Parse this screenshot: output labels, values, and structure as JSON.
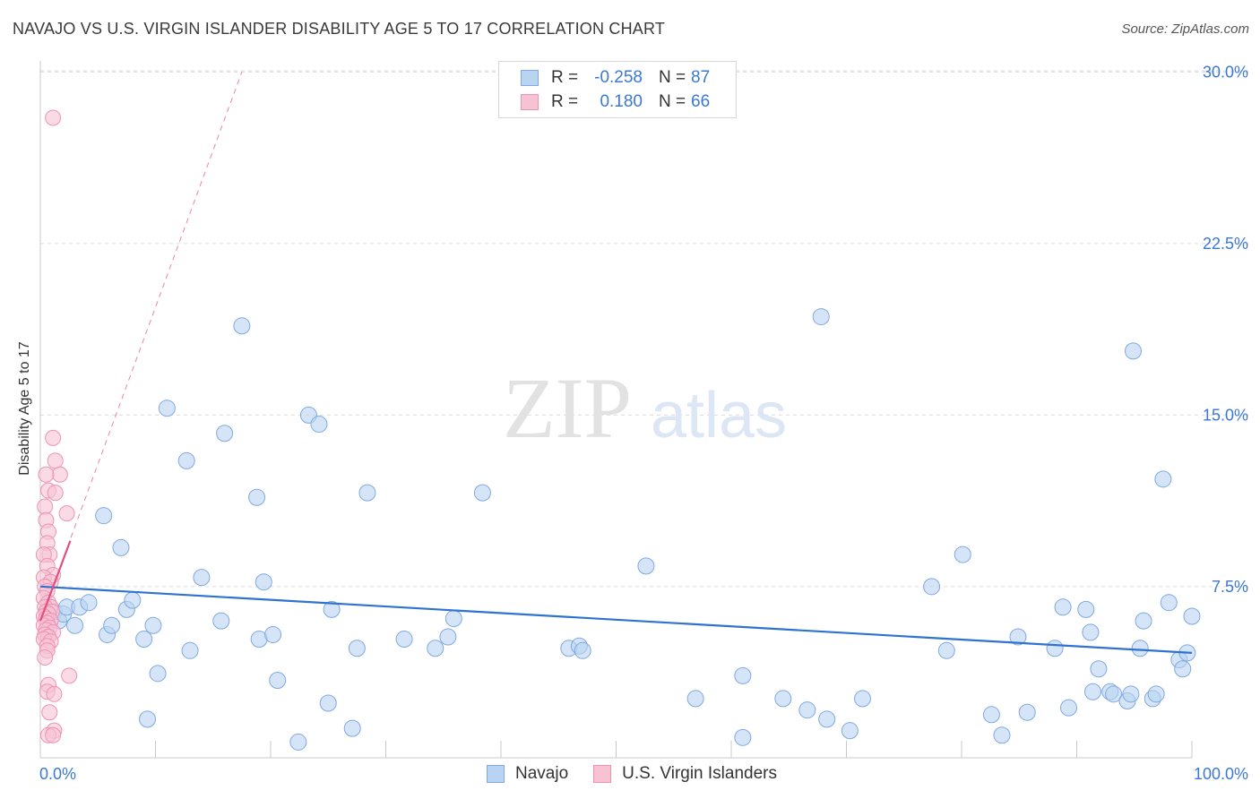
{
  "header": {
    "title": "NAVAJO VS U.S. VIRGIN ISLANDER DISABILITY AGE 5 TO 17 CORRELATION CHART",
    "source": "Source: ZipAtlas.com"
  },
  "watermark": {
    "zip": "ZIP",
    "atlas": "atlas"
  },
  "stats": {
    "navajo": {
      "r_label": "R =",
      "r_value": "-0.258",
      "n_label": "N =",
      "n_value": "87"
    },
    "virgin": {
      "r_label": "R =",
      "r_value": "0.180",
      "n_label": "N =",
      "n_value": "66"
    }
  },
  "legend": {
    "navajo": "Navajo",
    "virgin": "U.S. Virgin Islanders"
  },
  "colors": {
    "navajo_fill": "#b9d3f2",
    "navajo_stroke": "#7fa9e0",
    "navajo_line": "#2f73d0",
    "virgin_fill": "#f7c3d3",
    "virgin_stroke": "#ee93b1",
    "virgin_line": "#e2507f",
    "tick_label": "#3b78d4",
    "grid": "#dcdcdc"
  },
  "chart_data": {
    "type": "scatter",
    "title": "NAVAJO VS U.S. VIRGIN ISLANDER DISABILITY AGE 5 TO 17 CORRELATION CHART",
    "xlabel": "",
    "ylabel": "Disability Age 5 to 17",
    "xlim": [
      0,
      100
    ],
    "ylim": [
      0,
      31
    ],
    "x_tick_labels": [
      "0.0%",
      "100.0%"
    ],
    "y_ticks": [
      7.5,
      15.0,
      22.5,
      30.0
    ],
    "y_tick_labels": [
      "7.5%",
      "15.0%",
      "22.5%",
      "30.0%"
    ],
    "grid": true,
    "legend_position": "bottom-center",
    "series": [
      {
        "name": "Navajo",
        "r": -0.258,
        "n": 87,
        "trend": {
          "x": [
            0,
            100
          ],
          "y": [
            7.5,
            4.6
          ]
        },
        "points": [
          [
            1.2,
            6.4
          ],
          [
            1.6,
            6.0
          ],
          [
            2.0,
            6.3
          ],
          [
            2.3,
            6.6
          ],
          [
            3.0,
            5.8
          ],
          [
            3.4,
            6.6
          ],
          [
            4.2,
            6.8
          ],
          [
            5.5,
            10.6
          ],
          [
            5.8,
            5.4
          ],
          [
            6.2,
            5.8
          ],
          [
            7.0,
            9.2
          ],
          [
            7.5,
            6.5
          ],
          [
            8.0,
            6.9
          ],
          [
            9.0,
            5.2
          ],
          [
            9.3,
            1.7
          ],
          [
            9.8,
            5.8
          ],
          [
            10.2,
            3.7
          ],
          [
            11.0,
            15.3
          ],
          [
            12.7,
            13.0
          ],
          [
            13.0,
            4.7
          ],
          [
            14.0,
            7.9
          ],
          [
            15.7,
            6.0
          ],
          [
            16.0,
            14.2
          ],
          [
            17.5,
            18.9
          ],
          [
            18.8,
            11.4
          ],
          [
            19.0,
            5.2
          ],
          [
            19.4,
            7.7
          ],
          [
            20.2,
            5.4
          ],
          [
            20.6,
            3.4
          ],
          [
            22.4,
            0.7
          ],
          [
            23.3,
            15.0
          ],
          [
            24.2,
            14.6
          ],
          [
            25.0,
            2.4
          ],
          [
            25.3,
            6.5
          ],
          [
            27.1,
            1.3
          ],
          [
            27.5,
            4.8
          ],
          [
            28.4,
            11.6
          ],
          [
            31.6,
            5.2
          ],
          [
            34.3,
            4.8
          ],
          [
            35.4,
            5.3
          ],
          [
            35.9,
            6.1
          ],
          [
            38.4,
            11.6
          ],
          [
            45.9,
            4.8
          ],
          [
            46.8,
            4.9
          ],
          [
            47.1,
            4.7
          ],
          [
            52.6,
            8.4
          ],
          [
            56.9,
            2.6
          ],
          [
            61.0,
            3.6
          ],
          [
            61.0,
            0.9
          ],
          [
            64.5,
            2.6
          ],
          [
            66.6,
            2.1
          ],
          [
            67.8,
            19.3
          ],
          [
            68.3,
            1.7
          ],
          [
            70.3,
            1.2
          ],
          [
            71.4,
            2.6
          ],
          [
            77.4,
            7.5
          ],
          [
            78.7,
            4.7
          ],
          [
            80.1,
            8.9
          ],
          [
            82.6,
            1.9
          ],
          [
            83.5,
            1.0
          ],
          [
            84.9,
            5.3
          ],
          [
            85.7,
            2.0
          ],
          [
            88.1,
            4.8
          ],
          [
            88.8,
            6.6
          ],
          [
            89.3,
            2.2
          ],
          [
            90.8,
            6.5
          ],
          [
            91.2,
            5.5
          ],
          [
            91.4,
            2.9
          ],
          [
            91.9,
            3.9
          ],
          [
            92.9,
            2.9
          ],
          [
            93.2,
            2.8
          ],
          [
            94.4,
            2.5
          ],
          [
            94.7,
            2.8
          ],
          [
            94.9,
            17.8
          ],
          [
            95.5,
            4.8
          ],
          [
            95.8,
            6.0
          ],
          [
            96.6,
            2.6
          ],
          [
            96.9,
            2.8
          ],
          [
            97.5,
            12.2
          ],
          [
            98.0,
            6.8
          ],
          [
            98.9,
            4.3
          ],
          [
            99.2,
            3.9
          ],
          [
            99.6,
            4.6
          ],
          [
            100.0,
            6.2
          ]
        ]
      },
      {
        "name": "U.S. Virgin Islanders",
        "r": 0.18,
        "n": 66,
        "trend": {
          "x": [
            0,
            2.6
          ],
          "y": [
            6.0,
            9.5
          ]
        },
        "trend_extended": {
          "x": [
            0,
            17.5
          ],
          "y": [
            6.0,
            30.0
          ]
        },
        "points": [
          [
            1.1,
            28.0
          ],
          [
            1.1,
            14.0
          ],
          [
            1.3,
            13.0
          ],
          [
            1.7,
            12.4
          ],
          [
            0.5,
            12.4
          ],
          [
            0.7,
            11.7
          ],
          [
            1.3,
            11.6
          ],
          [
            2.3,
            10.7
          ],
          [
            0.4,
            11.0
          ],
          [
            0.5,
            10.4
          ],
          [
            0.7,
            9.9
          ],
          [
            0.6,
            9.4
          ],
          [
            0.8,
            8.9
          ],
          [
            0.3,
            8.9
          ],
          [
            0.6,
            8.4
          ],
          [
            1.1,
            8.0
          ],
          [
            0.3,
            7.9
          ],
          [
            0.9,
            7.7
          ],
          [
            0.4,
            7.5
          ],
          [
            0.6,
            7.3
          ],
          [
            0.3,
            7.0
          ],
          [
            0.7,
            6.8
          ],
          [
            0.9,
            6.6
          ],
          [
            0.4,
            6.6
          ],
          [
            0.5,
            6.4
          ],
          [
            1.0,
            6.4
          ],
          [
            0.7,
            6.3
          ],
          [
            0.3,
            6.2
          ],
          [
            0.5,
            6.1
          ],
          [
            0.9,
            6.0
          ],
          [
            0.6,
            5.9
          ],
          [
            0.3,
            5.8
          ],
          [
            0.8,
            5.7
          ],
          [
            0.5,
            5.6
          ],
          [
            1.1,
            5.5
          ],
          [
            0.4,
            5.4
          ],
          [
            0.7,
            5.3
          ],
          [
            0.3,
            5.2
          ],
          [
            0.9,
            5.1
          ],
          [
            0.6,
            4.9
          ],
          [
            0.6,
            4.7
          ],
          [
            0.4,
            4.4
          ],
          [
            2.5,
            3.6
          ],
          [
            0.7,
            3.2
          ],
          [
            0.6,
            2.9
          ],
          [
            1.2,
            2.8
          ],
          [
            0.8,
            2.0
          ],
          [
            1.2,
            1.2
          ],
          [
            0.7,
            1.0
          ],
          [
            1.1,
            1.0
          ]
        ]
      }
    ]
  }
}
